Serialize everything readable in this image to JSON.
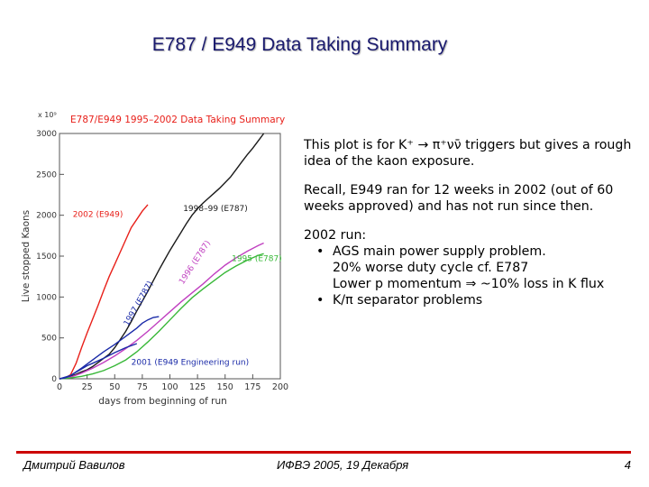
{
  "slide": {
    "title": "E787 / E949 Data Taking Summary",
    "footer_left": "Дмитрий Вавилов",
    "footer_center": "ИФВЭ 2005, 19 Декабря",
    "page_number": "4"
  },
  "notes": {
    "p1": "This plot is for K⁺ → π⁺νν̄  triggers but gives a rough idea of the kaon exposure.",
    "p2": "Recall, E949 ran for 12 weeks in 2002 (out of 60 weeks approved) and has not run since then.",
    "p3_head": "2002 run:",
    "p3_items": [
      "AGS main power supply problem.",
      "K/π separator problems"
    ],
    "p3_item1_cont": [
      "20% worse duty cycle cf. E787",
      "Lower p momentum ⇒ ~10% loss in K flux"
    ]
  },
  "chart_data": {
    "type": "line",
    "title": "E787/E949 1995–2002 Data Taking Summary",
    "xlabel": "days from beginning of run",
    "ylabel": "Live stopped Kaons",
    "y_multiplier": "x 10⁹",
    "xlim": [
      0,
      200
    ],
    "ylim": [
      0,
      3000
    ],
    "xticks": [
      0,
      25,
      50,
      75,
      100,
      125,
      150,
      175,
      200
    ],
    "yticks": [
      0,
      500,
      1000,
      1500,
      2000,
      2500,
      3000
    ],
    "series": [
      {
        "name": "2002 (E949)",
        "color": "#e8201a",
        "x": [
          0,
          5,
          10,
          15,
          20,
          25,
          30,
          35,
          40,
          45,
          50,
          55,
          60,
          65,
          70,
          75,
          80
        ],
        "y": [
          0,
          10,
          50,
          190,
          380,
          560,
          730,
          900,
          1080,
          1250,
          1400,
          1550,
          1700,
          1850,
          1950,
          2050,
          2130
        ]
      },
      {
        "name": "1998–99 (E787)",
        "color": "#1a1a1a",
        "x": [
          0,
          5,
          10,
          15,
          20,
          25,
          30,
          35,
          40,
          45,
          50,
          55,
          60,
          65,
          70,
          75,
          80,
          85,
          90,
          95,
          100,
          105,
          110,
          115,
          120,
          125,
          130,
          135,
          140,
          145,
          150,
          155,
          160,
          165,
          170,
          175,
          180,
          185
        ],
        "y": [
          0,
          10,
          30,
          55,
          85,
          110,
          150,
          200,
          250,
          300,
          380,
          480,
          580,
          700,
          830,
          950,
          1070,
          1200,
          1330,
          1450,
          1570,
          1680,
          1790,
          1900,
          2000,
          2080,
          2150,
          2210,
          2270,
          2330,
          2400,
          2470,
          2560,
          2650,
          2740,
          2820,
          2910,
          3000
        ]
      },
      {
        "name": "1996 (E787)",
        "color": "#c040c0",
        "x": [
          0,
          10,
          20,
          30,
          40,
          50,
          60,
          70,
          80,
          90,
          100,
          110,
          120,
          130,
          140,
          150,
          160,
          170,
          180,
          185
        ],
        "y": [
          0,
          20,
          70,
          130,
          200,
          280,
          370,
          470,
          580,
          700,
          820,
          940,
          1050,
          1160,
          1280,
          1390,
          1480,
          1560,
          1630,
          1660
        ]
      },
      {
        "name": "1995 (E787)",
        "color": "#38b838",
        "x": [
          0,
          10,
          20,
          30,
          40,
          50,
          60,
          70,
          80,
          90,
          100,
          110,
          120,
          130,
          140,
          150,
          160,
          170,
          180,
          185
        ],
        "y": [
          0,
          10,
          30,
          60,
          100,
          160,
          230,
          330,
          450,
          580,
          720,
          860,
          990,
          1100,
          1200,
          1300,
          1380,
          1450,
          1510,
          1530
        ]
      },
      {
        "name": "1997 (E787)",
        "color": "#1a2aa8",
        "x": [
          0,
          10,
          20,
          30,
          40,
          50,
          60,
          70,
          75,
          80,
          85,
          90
        ],
        "y": [
          0,
          40,
          130,
          230,
          330,
          420,
          520,
          620,
          680,
          720,
          750,
          760
        ]
      },
      {
        "name": "2001 (E949 Engineering run)",
        "color": "#1a2aa8",
        "x": [
          0,
          5,
          10,
          15,
          20,
          25,
          30,
          40,
          50,
          60,
          70
        ],
        "y": [
          0,
          10,
          40,
          80,
          120,
          160,
          190,
          250,
          320,
          380,
          430
        ]
      }
    ]
  }
}
